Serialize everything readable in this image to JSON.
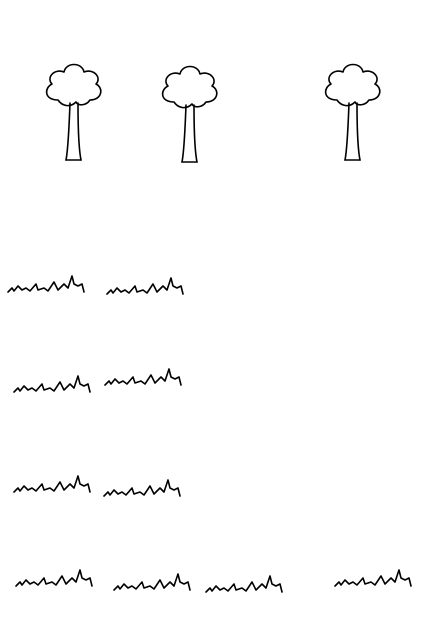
{
  "scene": {
    "background": "#ffffff",
    "stroke_color": "#000000",
    "trees": [
      {
        "id": "tree-1"
      },
      {
        "id": "tree-2"
      },
      {
        "id": "tree-3"
      }
    ],
    "grass_rows": [
      {
        "row": 1,
        "tufts": 2
      },
      {
        "row": 2,
        "tufts": 2
      },
      {
        "row": 3,
        "tufts": 2
      },
      {
        "row": 4,
        "tufts": 4
      }
    ]
  }
}
